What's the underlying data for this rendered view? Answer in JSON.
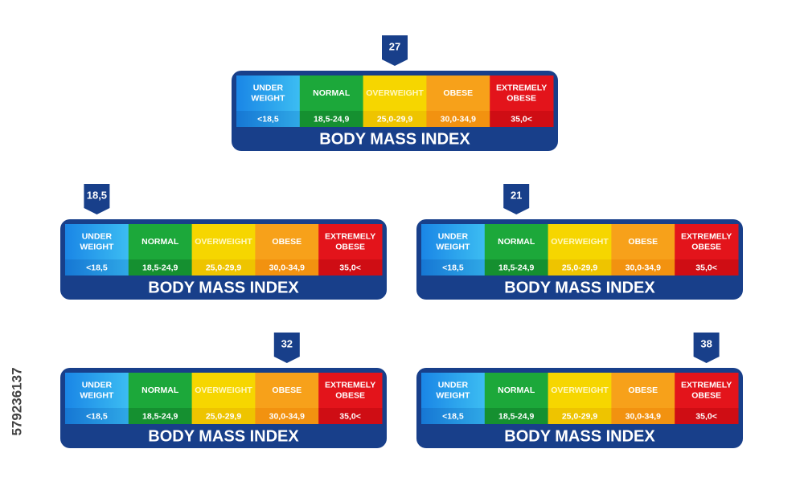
{
  "scale": {
    "categories": [
      [
        "UNDER",
        "WEIGHT"
      ],
      [
        "NORMAL"
      ],
      [
        "OVERWEIGHT"
      ],
      [
        "OBESE"
      ],
      [
        "EXTREMELY",
        "OBESE"
      ]
    ],
    "ranges": [
      "<18,5",
      "18,5-24,9",
      "25,0-29,9",
      "30,0-34,9",
      "35,0<"
    ],
    "title": "BODY MASS INDEX"
  },
  "markers": [
    "27",
    "18,5",
    "21",
    "32",
    "38"
  ],
  "watermark": "579236137"
}
